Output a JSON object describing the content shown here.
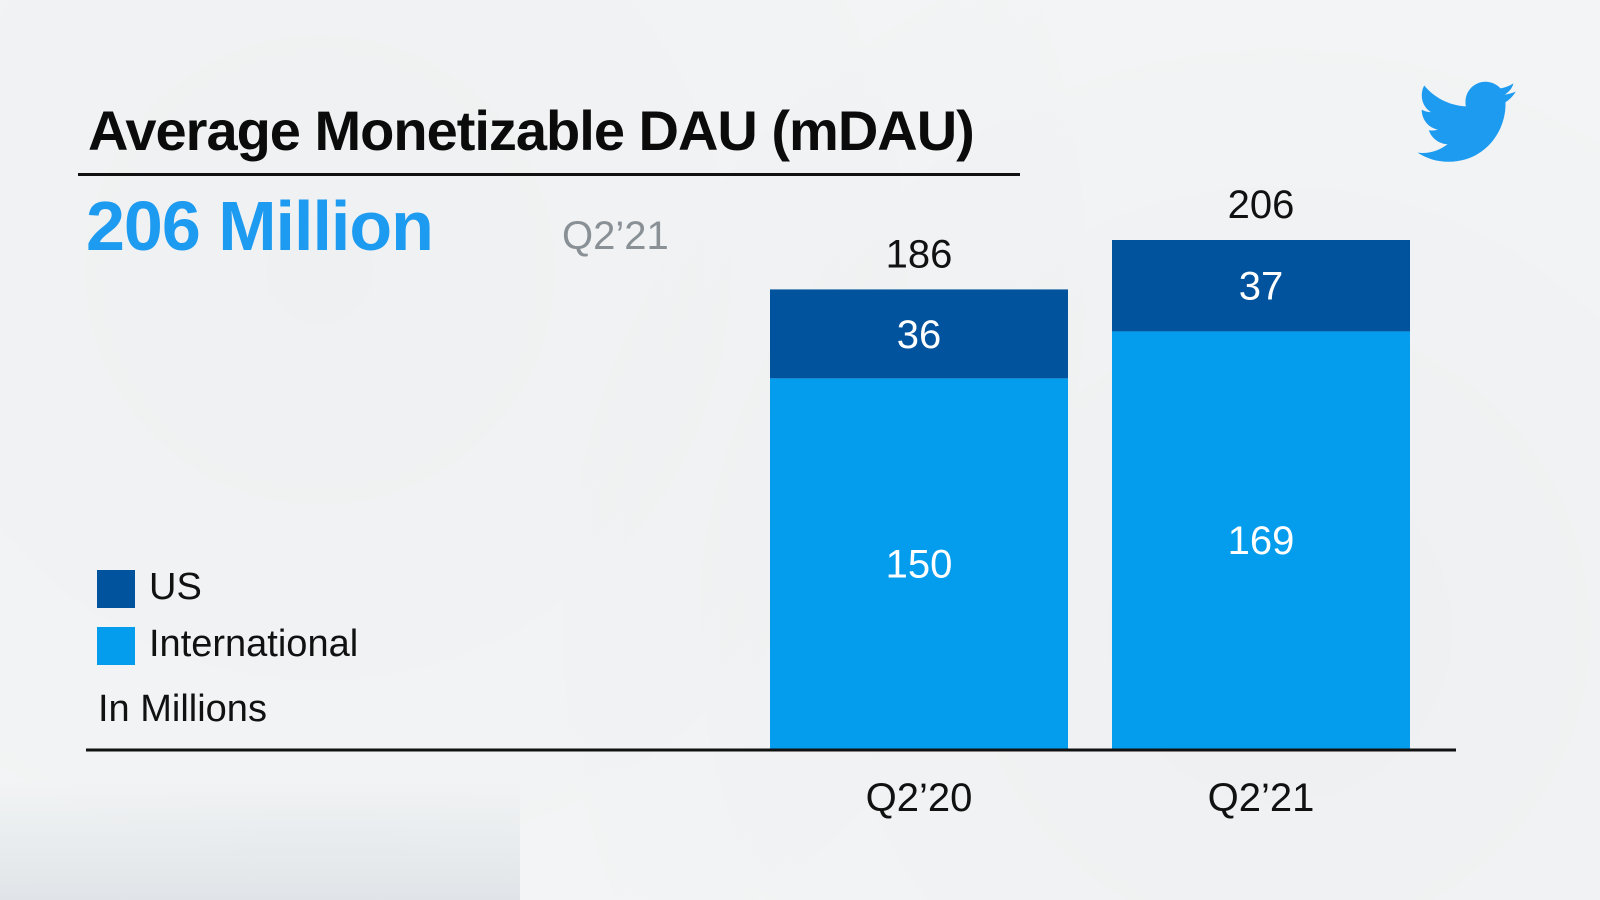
{
  "colors": {
    "us": "#01539d",
    "international": "#049ded",
    "headline": "#1d9bf0",
    "brand": "#1d9bf0"
  },
  "logo_icon": "twitter-bird-icon",
  "headline": {
    "value": "206 Million",
    "period": "Q2’21"
  },
  "legend": {
    "items": [
      {
        "label": "US",
        "color": "#01539d"
      },
      {
        "label": "International",
        "color": "#049ded"
      }
    ],
    "units": "In Millions"
  },
  "chart_data": {
    "type": "bar",
    "stacked": true,
    "title": "Average Monetizable DAU (mDAU)",
    "categories": [
      "Q2’20",
      "Q2’21"
    ],
    "series": [
      {
        "name": "International",
        "values": [
          150,
          169
        ]
      },
      {
        "name": "US",
        "values": [
          36,
          37
        ]
      }
    ],
    "totals": [
      186,
      206
    ],
    "ylim": [
      0,
      206
    ],
    "grid": false,
    "legend_position": "left"
  }
}
